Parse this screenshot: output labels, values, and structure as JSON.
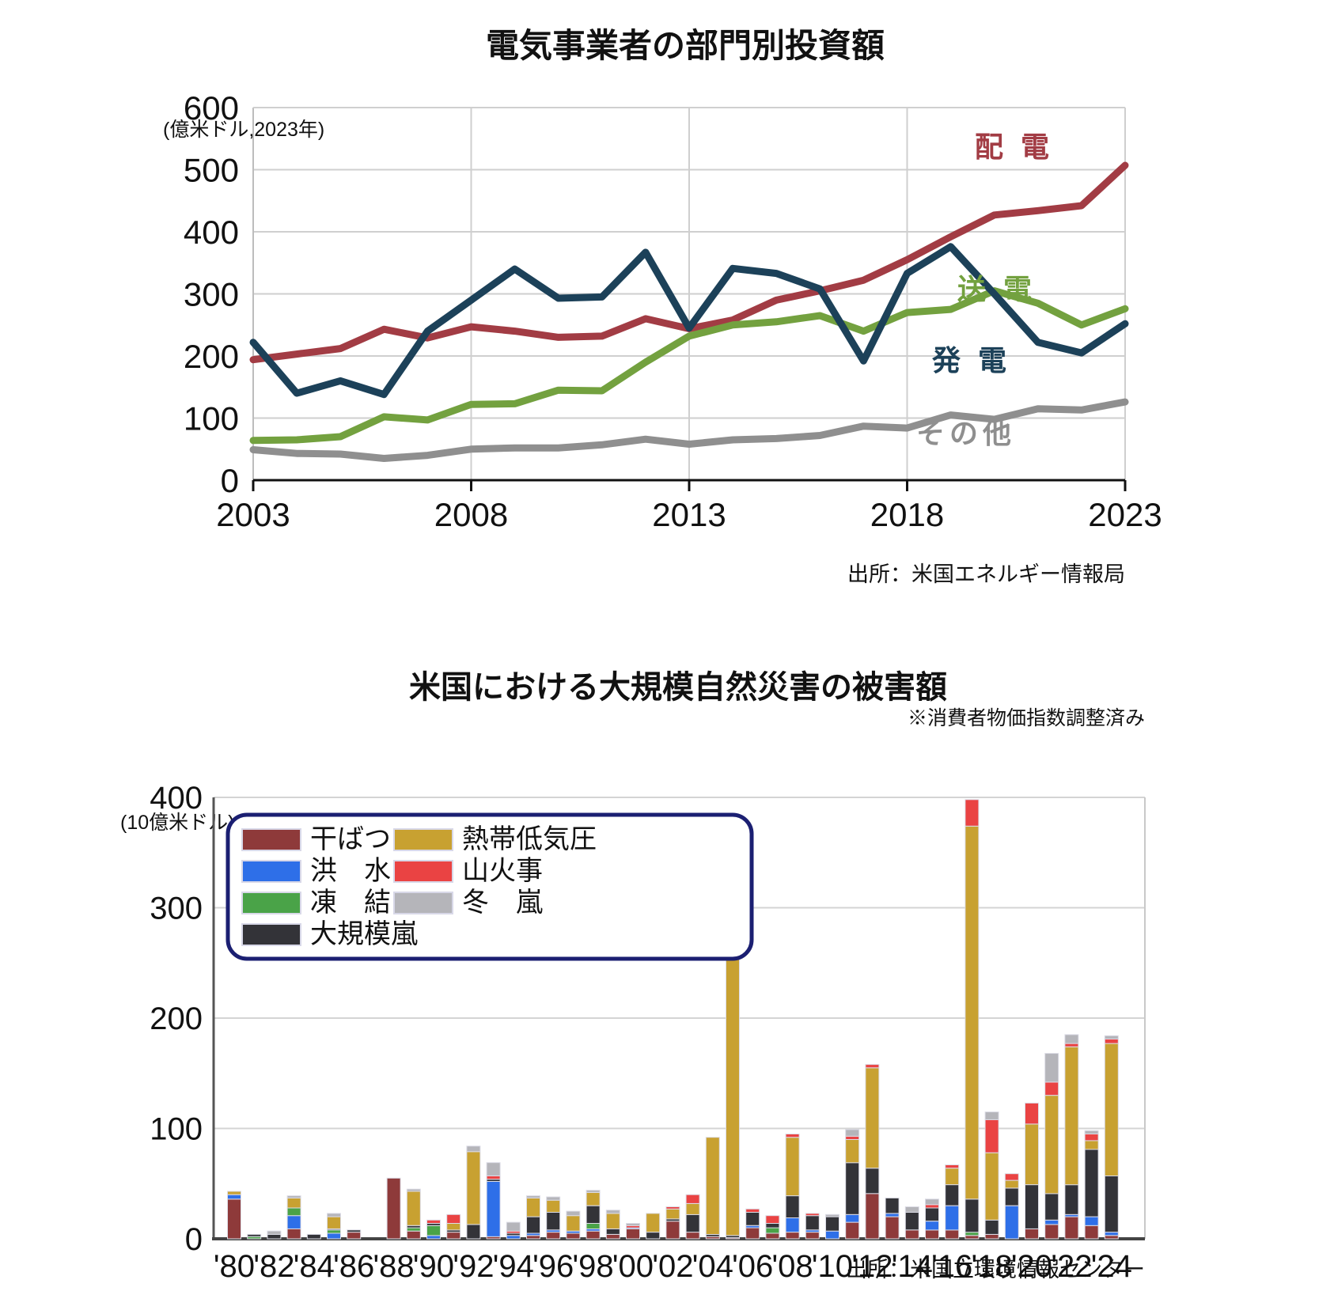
{
  "page": {
    "background": "#ffffff"
  },
  "chart1": {
    "title": "電気事業者の部門別投資額",
    "unit": "(億米ドル,2023年)",
    "source": "出所：米国エネルギー情報局",
    "series_labels": {
      "haiden": "配 電",
      "souden": "送 電",
      "hatsuden": "発 電",
      "sonota": "その他"
    },
    "colors": {
      "haiden": "#a23c44",
      "souden": "#73a13f",
      "hatsuden": "#1c4159",
      "sonota": "#8f8f8f"
    }
  },
  "chart2": {
    "title": "米国における大規模自然災害の被害額",
    "unit": "(10億米ドル)",
    "note": "※消費者物価指数調整済み",
    "source": "出所：米国立環境情報センター",
    "legend_border_color": "#1b1f72"
  },
  "chart_data": [
    {
      "type": "line",
      "title": "電気事業者の部門別投資額",
      "ylabel": "(億米ドル,2023年)",
      "source": "出所：米国エネルギー情報局",
      "ylim": [
        0,
        600
      ],
      "yticks": [
        0,
        100,
        200,
        300,
        400,
        500,
        600
      ],
      "x": [
        2003,
        2004,
        2005,
        2006,
        2007,
        2008,
        2009,
        2010,
        2011,
        2012,
        2013,
        2014,
        2015,
        2016,
        2017,
        2018,
        2019,
        2020,
        2021,
        2022,
        2023
      ],
      "xticks": [
        "2003",
        "2008",
        "2013",
        "2018",
        "2023"
      ],
      "grid": true,
      "legend_position": "inline-right",
      "series": [
        {
          "name": "配電",
          "color": "#a23c44",
          "values": [
            194,
            203,
            212,
            243,
            229,
            247,
            240,
            230,
            232,
            260,
            244,
            258,
            290,
            305,
            322,
            355,
            392,
            427,
            434,
            442,
            507
          ]
        },
        {
          "name": "送電",
          "color": "#73a13f",
          "values": [
            64,
            65,
            70,
            102,
            97,
            122,
            123,
            145,
            144,
            190,
            232,
            250,
            255,
            265,
            240,
            270,
            275,
            305,
            285,
            250,
            276
          ]
        },
        {
          "name": "発電",
          "color": "#1c4159",
          "values": [
            222,
            140,
            160,
            138,
            240,
            290,
            340,
            293,
            295,
            367,
            245,
            341,
            333,
            308,
            192,
            333,
            376,
            300,
            222,
            205,
            252
          ]
        },
        {
          "name": "その他",
          "color": "#8f8f8f",
          "values": [
            49,
            43,
            42,
            35,
            40,
            50,
            52,
            52,
            57,
            66,
            58,
            65,
            67,
            72,
            87,
            84,
            105,
            98,
            115,
            113,
            126
          ]
        }
      ]
    },
    {
      "type": "stacked-bar",
      "title": "米国における大規模自然災害の被害額",
      "ylabel": "(10億米ドル)",
      "note": "※消費者物価指数調整済み",
      "source": "出所：米国立環境情報センター",
      "ylim": [
        0,
        400
      ],
      "yticks": [
        0,
        100,
        200,
        300,
        400
      ],
      "grid": true,
      "legend_position": "upper-left-box",
      "categories": [
        {
          "key": "drought",
          "label": "干ばつ",
          "color": "#8e3a3a"
        },
        {
          "key": "flood",
          "label": "洪　水",
          "color": "#2e6fe8"
        },
        {
          "key": "freeze",
          "label": "凍　結",
          "color": "#4aa348"
        },
        {
          "key": "severe_storm",
          "label": "大規模嵐",
          "color": "#333338"
        },
        {
          "key": "tropical_cyclone",
          "label": "熱帯低気圧",
          "color": "#c8a131"
        },
        {
          "key": "wildfire",
          "label": "山火事",
          "color": "#ea4343"
        },
        {
          "key": "winter_storm",
          "label": "冬　嵐",
          "color": "#b5b5ba"
        }
      ],
      "legend_columns": [
        [
          "drought",
          "flood",
          "freeze",
          "severe_storm"
        ],
        [
          "tropical_cyclone",
          "wildfire",
          "winter_storm"
        ]
      ],
      "years": [
        1980,
        1981,
        1982,
        1983,
        1984,
        1985,
        1986,
        1987,
        1988,
        1989,
        1990,
        1991,
        1992,
        1993,
        1994,
        1995,
        1996,
        1997,
        1998,
        1999,
        2000,
        2001,
        2002,
        2003,
        2004,
        2005,
        2006,
        2007,
        2008,
        2009,
        2010,
        2011,
        2012,
        2013,
        2014,
        2015,
        2016,
        2017,
        2018,
        2019,
        2020,
        2021,
        2022,
        2023,
        2024
      ],
      "xtick_labels": [
        "'80",
        "'82",
        "'84",
        "'86",
        "'88",
        "'90",
        "'92",
        "'94",
        "'96",
        "'98",
        "'00",
        "'02",
        "'04",
        "'06",
        "'08",
        "'10",
        "'12",
        "'14",
        "'16",
        "'18",
        "'20",
        "'22",
        "'24"
      ],
      "stacks": [
        [
          36,
          4,
          0,
          0,
          3,
          0,
          0
        ],
        [
          0,
          0,
          2,
          2,
          0,
          0,
          0
        ],
        [
          0,
          0,
          0,
          4,
          0,
          0,
          3
        ],
        [
          9,
          12,
          7,
          0,
          9,
          0,
          2
        ],
        [
          0,
          0,
          0,
          4,
          0,
          0,
          0
        ],
        [
          0,
          5,
          3,
          1,
          11,
          0,
          3
        ],
        [
          6,
          0,
          0,
          2,
          0,
          0,
          0
        ],
        [
          0,
          0,
          0,
          0,
          0,
          0,
          0
        ],
        [
          55,
          0,
          0,
          0,
          0,
          0,
          0
        ],
        [
          7,
          0,
          3,
          2,
          31,
          0,
          2
        ],
        [
          0,
          3,
          9,
          2,
          0,
          3,
          0
        ],
        [
          6,
          0,
          0,
          2,
          6,
          8,
          0
        ],
        [
          0,
          0,
          0,
          13,
          66,
          0,
          5
        ],
        [
          2,
          50,
          0,
          2,
          0,
          3,
          12
        ],
        [
          0,
          3,
          0,
          2,
          0,
          2,
          8
        ],
        [
          3,
          2,
          0,
          15,
          17,
          0,
          2
        ],
        [
          6,
          2,
          0,
          16,
          11,
          0,
          3
        ],
        [
          5,
          2,
          0,
          0,
          14,
          0,
          4
        ],
        [
          7,
          2,
          5,
          16,
          12,
          0,
          2
        ],
        [
          4,
          0,
          0,
          5,
          14,
          0,
          3
        ],
        [
          9,
          1,
          0,
          0,
          0,
          2,
          2
        ],
        [
          0,
          0,
          0,
          6,
          17,
          0,
          0
        ],
        [
          16,
          0,
          0,
          2,
          9,
          2,
          0
        ],
        [
          6,
          0,
          0,
          16,
          10,
          8,
          0
        ],
        [
          2,
          0,
          0,
          2,
          88,
          0,
          0
        ],
        [
          1,
          0,
          0,
          2,
          265,
          0,
          0
        ],
        [
          10,
          2,
          0,
          12,
          0,
          3,
          0
        ],
        [
          5,
          0,
          5,
          4,
          0,
          7,
          0
        ],
        [
          6,
          13,
          0,
          20,
          53,
          3,
          0
        ],
        [
          6,
          2,
          0,
          13,
          0,
          2,
          0
        ],
        [
          0,
          7,
          0,
          13,
          0,
          0,
          2
        ],
        [
          15,
          7,
          0,
          47,
          21,
          3,
          6
        ],
        [
          41,
          0,
          0,
          23,
          91,
          3,
          0
        ],
        [
          20,
          3,
          0,
          14,
          0,
          0,
          0
        ],
        [
          8,
          0,
          0,
          16,
          0,
          0,
          5
        ],
        [
          8,
          8,
          0,
          12,
          0,
          3,
          5
        ],
        [
          8,
          22,
          0,
          19,
          15,
          3,
          0
        ],
        [
          3,
          0,
          3,
          30,
          338,
          24,
          0
        ],
        [
          4,
          0,
          0,
          13,
          61,
          30,
          7
        ],
        [
          0,
          30,
          0,
          16,
          7,
          6,
          0
        ],
        [
          9,
          0,
          0,
          40,
          55,
          19,
          0
        ],
        [
          13,
          4,
          0,
          24,
          89,
          12,
          26
        ],
        [
          20,
          2,
          0,
          27,
          125,
          3,
          8
        ],
        [
          12,
          8,
          0,
          61,
          8,
          6,
          3
        ],
        [
          3,
          3,
          0,
          51,
          120,
          4,
          3
        ]
      ]
    }
  ]
}
